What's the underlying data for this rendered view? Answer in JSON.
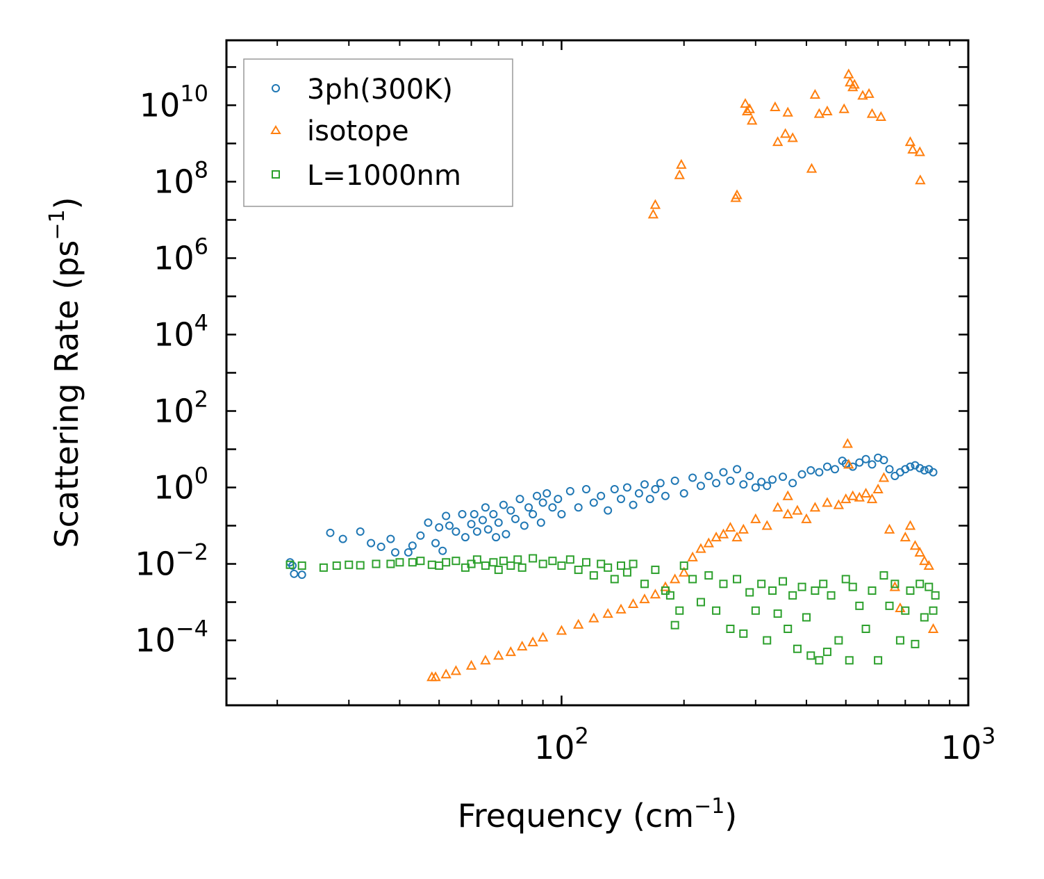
{
  "chart_data": {
    "type": "scatter",
    "xscale": "log",
    "yscale": "log",
    "xlabel": "Frequency (cm",
    "xlabel_sup": "−1",
    "xlabel_suffix": ")",
    "ylabel": "Scattering Rate (ps",
    "ylabel_sup": "−1",
    "ylabel_suffix": ")",
    "xlim": [
      15,
      1000
    ],
    "ylim": [
      2e-06,
      500000000000
    ],
    "xticks": [
      {
        "value": 100,
        "base": "10",
        "exp": "2"
      },
      {
        "value": 1000,
        "base": "10",
        "exp": "3"
      }
    ],
    "yticks": [
      {
        "value": 0.0001,
        "base": "10",
        "exp": "−4"
      },
      {
        "value": 0.01,
        "base": "10",
        "exp": "−2"
      },
      {
        "value": 1,
        "base": "10",
        "exp": "0"
      },
      {
        "value": 100,
        "base": "10",
        "exp": "2"
      },
      {
        "value": 10000,
        "base": "10",
        "exp": "4"
      },
      {
        "value": 1000000,
        "base": "10",
        "exp": "6"
      },
      {
        "value": 100000000,
        "base": "10",
        "exp": "8"
      },
      {
        "value": 10000000000,
        "base": "10",
        "exp": "10"
      }
    ],
    "legend_position": "top-left",
    "series": [
      {
        "name": "3ph(300K)",
        "marker": "circle",
        "color": "#1f77b4",
        "points": [
          [
            21.5,
            0.011
          ],
          [
            21.8,
            0.009
          ],
          [
            22.0,
            0.0055
          ],
          [
            23.0,
            0.0052
          ],
          [
            27,
            0.065
          ],
          [
            29,
            0.045
          ],
          [
            32,
            0.07
          ],
          [
            34,
            0.035
          ],
          [
            36,
            0.028
          ],
          [
            38,
            0.045
          ],
          [
            39,
            0.02
          ],
          [
            42,
            0.02
          ],
          [
            43,
            0.03
          ],
          [
            45,
            0.055
          ],
          [
            47,
            0.12
          ],
          [
            49,
            0.035
          ],
          [
            50,
            0.09
          ],
          [
            51,
            0.022
          ],
          [
            52,
            0.18
          ],
          [
            53,
            0.1
          ],
          [
            55,
            0.07
          ],
          [
            57,
            0.2
          ],
          [
            58,
            0.05
          ],
          [
            60,
            0.11
          ],
          [
            61,
            0.2
          ],
          [
            62,
            0.07
          ],
          [
            64,
            0.14
          ],
          [
            65,
            0.3
          ],
          [
            66,
            0.08
          ],
          [
            68,
            0.2
          ],
          [
            69,
            0.05
          ],
          [
            70,
            0.12
          ],
          [
            72,
            0.35
          ],
          [
            73,
            0.06
          ],
          [
            75,
            0.25
          ],
          [
            77,
            0.15
          ],
          [
            79,
            0.5
          ],
          [
            81,
            0.1
          ],
          [
            83,
            0.3
          ],
          [
            85,
            0.2
          ],
          [
            87,
            0.6
          ],
          [
            89,
            0.12
          ],
          [
            90,
            0.4
          ],
          [
            92,
            0.7
          ],
          [
            95,
            0.3
          ],
          [
            98,
            0.5
          ],
          [
            100,
            0.2
          ],
          [
            105,
            0.8
          ],
          [
            110,
            0.3
          ],
          [
            115,
            0.9
          ],
          [
            120,
            0.4
          ],
          [
            125,
            0.6
          ],
          [
            130,
            0.25
          ],
          [
            135,
            0.9
          ],
          [
            140,
            0.5
          ],
          [
            145,
            1.0
          ],
          [
            150,
            0.35
          ],
          [
            155,
            0.7
          ],
          [
            160,
            1.2
          ],
          [
            165,
            0.5
          ],
          [
            170,
            0.9
          ],
          [
            175,
            1.3
          ],
          [
            180,
            0.6
          ],
          [
            190,
            1.5
          ],
          [
            200,
            0.7
          ],
          [
            210,
            1.8
          ],
          [
            220,
            1.1
          ],
          [
            230,
            2.0
          ],
          [
            240,
            1.3
          ],
          [
            250,
            2.5
          ],
          [
            260,
            1.5
          ],
          [
            270,
            3.0
          ],
          [
            280,
            1.2
          ],
          [
            290,
            2.0
          ],
          [
            300,
            1.0
          ],
          [
            310,
            1.4
          ],
          [
            320,
            1.1
          ],
          [
            330,
            1.6
          ],
          [
            350,
            1.9
          ],
          [
            370,
            1.3
          ],
          [
            390,
            2.2
          ],
          [
            410,
            2.8
          ],
          [
            430,
            2.5
          ],
          [
            450,
            3.5
          ],
          [
            470,
            3.0
          ],
          [
            490,
            5.0
          ],
          [
            500,
            4.2
          ],
          [
            520,
            3.5
          ],
          [
            540,
            4.5
          ],
          [
            560,
            5.5
          ],
          [
            580,
            4.0
          ],
          [
            600,
            6.0
          ],
          [
            620,
            5.2
          ],
          [
            640,
            3.0
          ],
          [
            660,
            2.0
          ],
          [
            680,
            2.5
          ],
          [
            700,
            3.0
          ],
          [
            720,
            3.5
          ],
          [
            740,
            3.8
          ],
          [
            760,
            3.2
          ],
          [
            780,
            2.8
          ],
          [
            800,
            3.0
          ],
          [
            820,
            2.5
          ]
        ]
      },
      {
        "name": "isotope",
        "marker": "triangle",
        "color": "#ff7f0e",
        "points": [
          [
            48,
            1.1e-05
          ],
          [
            49,
            1.1e-05
          ],
          [
            52,
            1.3e-05
          ],
          [
            55,
            1.6e-05
          ],
          [
            60,
            2.2e-05
          ],
          [
            65,
            3e-05
          ],
          [
            70,
            4e-05
          ],
          [
            75,
            5e-05
          ],
          [
            80,
            7e-05
          ],
          [
            85,
            9e-05
          ],
          [
            90,
            0.00012
          ],
          [
            100,
            0.00018
          ],
          [
            110,
            0.00026
          ],
          [
            120,
            0.00038
          ],
          [
            130,
            0.0005
          ],
          [
            140,
            0.00065
          ],
          [
            150,
            0.0009
          ],
          [
            160,
            0.0012
          ],
          [
            170,
            0.0016
          ],
          [
            180,
            0.0025
          ],
          [
            190,
            0.004
          ],
          [
            200,
            0.006
          ],
          [
            210,
            0.015
          ],
          [
            220,
            0.025
          ],
          [
            230,
            0.035
          ],
          [
            240,
            0.05
          ],
          [
            250,
            0.06
          ],
          [
            260,
            0.09
          ],
          [
            270,
            0.05
          ],
          [
            280,
            0.08
          ],
          [
            300,
            0.15
          ],
          [
            320,
            0.1
          ],
          [
            340,
            0.3
          ],
          [
            360,
            0.2
          ],
          [
            380,
            0.25
          ],
          [
            400,
            0.15
          ],
          [
            420,
            0.3
          ],
          [
            450,
            0.4
          ],
          [
            480,
            0.35
          ],
          [
            500,
            0.5
          ],
          [
            520,
            0.6
          ],
          [
            540,
            0.55
          ],
          [
            560,
            0.7
          ],
          [
            580,
            0.5
          ],
          [
            600,
            0.9
          ],
          [
            620,
            1.8
          ],
          [
            640,
            0.08
          ],
          [
            660,
            0.0025
          ],
          [
            680,
            0.0007
          ],
          [
            700,
            0.05
          ],
          [
            720,
            0.1
          ],
          [
            740,
            0.03
          ],
          [
            760,
            0.02
          ],
          [
            780,
            0.012
          ],
          [
            800,
            0.009
          ],
          [
            820,
            0.0002
          ],
          [
            170,
            25000000
          ],
          [
            168,
            14000000
          ],
          [
            197,
            280000000
          ],
          [
            195,
            150000000
          ],
          [
            270,
            45000000
          ],
          [
            268,
            38000000
          ],
          [
            283,
            11000000000
          ],
          [
            286,
            7000000000
          ],
          [
            290,
            8000000000
          ],
          [
            294,
            4000000000
          ],
          [
            335,
            9000000000
          ],
          [
            340,
            1100000000
          ],
          [
            355,
            1800000000
          ],
          [
            360,
            6500000000
          ],
          [
            370,
            1400000000
          ],
          [
            412,
            220000000
          ],
          [
            420,
            19000000000
          ],
          [
            430,
            6000000000
          ],
          [
            450,
            7000000000
          ],
          [
            495,
            8000000000
          ],
          [
            508,
            65000000000
          ],
          [
            512,
            40000000000
          ],
          [
            520,
            30000000000
          ],
          [
            525,
            35000000000
          ],
          [
            550,
            18000000000
          ],
          [
            570,
            20000000000
          ],
          [
            580,
            6000000000
          ],
          [
            610,
            5000000000
          ],
          [
            720,
            1100000000
          ],
          [
            730,
            700000000
          ],
          [
            760,
            600000000
          ],
          [
            762,
            110000000
          ],
          [
            505,
            14
          ],
          [
            508,
            4
          ],
          [
            360,
            0.6
          ]
        ]
      },
      {
        "name": "L=1000nm",
        "marker": "square",
        "color": "#2ca02c",
        "points": [
          [
            21.5,
            0.0095
          ],
          [
            23,
            0.009
          ],
          [
            26,
            0.008
          ],
          [
            28,
            0.009
          ],
          [
            30,
            0.0095
          ],
          [
            32,
            0.0092
          ],
          [
            35,
            0.01
          ],
          [
            38,
            0.01
          ],
          [
            40,
            0.011
          ],
          [
            43,
            0.011
          ],
          [
            45,
            0.012
          ],
          [
            48,
            0.0095
          ],
          [
            50,
            0.009
          ],
          [
            52,
            0.011
          ],
          [
            55,
            0.012
          ],
          [
            58,
            0.008
          ],
          [
            60,
            0.01
          ],
          [
            62,
            0.013
          ],
          [
            65,
            0.009
          ],
          [
            68,
            0.011
          ],
          [
            70,
            0.007
          ],
          [
            72,
            0.012
          ],
          [
            75,
            0.009
          ],
          [
            78,
            0.013
          ],
          [
            80,
            0.008
          ],
          [
            85,
            0.014
          ],
          [
            90,
            0.01
          ],
          [
            95,
            0.012
          ],
          [
            100,
            0.009
          ],
          [
            105,
            0.013
          ],
          [
            110,
            0.007
          ],
          [
            115,
            0.011
          ],
          [
            120,
            0.005
          ],
          [
            125,
            0.01
          ],
          [
            130,
            0.008
          ],
          [
            135,
            0.004
          ],
          [
            140,
            0.009
          ],
          [
            145,
            0.006
          ],
          [
            150,
            0.01
          ],
          [
            160,
            0.003
          ],
          [
            170,
            0.007
          ],
          [
            180,
            0.002
          ],
          [
            185,
            0.0015
          ],
          [
            190,
            0.00025
          ],
          [
            195,
            0.0006
          ],
          [
            200,
            0.009
          ],
          [
            210,
            0.004
          ],
          [
            220,
            0.001
          ],
          [
            230,
            0.005
          ],
          [
            240,
            0.0006
          ],
          [
            250,
            0.003
          ],
          [
            260,
            0.0002
          ],
          [
            270,
            0.004
          ],
          [
            280,
            0.00015
          ],
          [
            290,
            0.0018
          ],
          [
            300,
            0.0006
          ],
          [
            310,
            0.003
          ],
          [
            320,
            0.0001
          ],
          [
            330,
            0.002
          ],
          [
            340,
            0.0005
          ],
          [
            350,
            0.0035
          ],
          [
            360,
            0.0002
          ],
          [
            370,
            0.0015
          ],
          [
            380,
            6e-05
          ],
          [
            390,
            0.0025
          ],
          [
            400,
            0.0004
          ],
          [
            410,
            4e-05
          ],
          [
            420,
            0.002
          ],
          [
            430,
            3e-05
          ],
          [
            440,
            0.003
          ],
          [
            450,
            5e-05
          ],
          [
            460,
            0.0015
          ],
          [
            480,
            0.0001
          ],
          [
            500,
            0.004
          ],
          [
            510,
            3e-05
          ],
          [
            520,
            0.0025
          ],
          [
            540,
            0.0008
          ],
          [
            560,
            0.0002
          ],
          [
            580,
            0.002
          ],
          [
            600,
            3e-05
          ],
          [
            620,
            0.005
          ],
          [
            640,
            0.0008
          ],
          [
            660,
            0.003
          ],
          [
            680,
            0.0001
          ],
          [
            700,
            0.0006
          ],
          [
            720,
            0.002
          ],
          [
            740,
            8e-05
          ],
          [
            760,
            0.003
          ],
          [
            780,
            0.0004
          ],
          [
            800,
            0.0025
          ],
          [
            820,
            0.0006
          ],
          [
            830,
            0.0015
          ]
        ]
      }
    ]
  }
}
